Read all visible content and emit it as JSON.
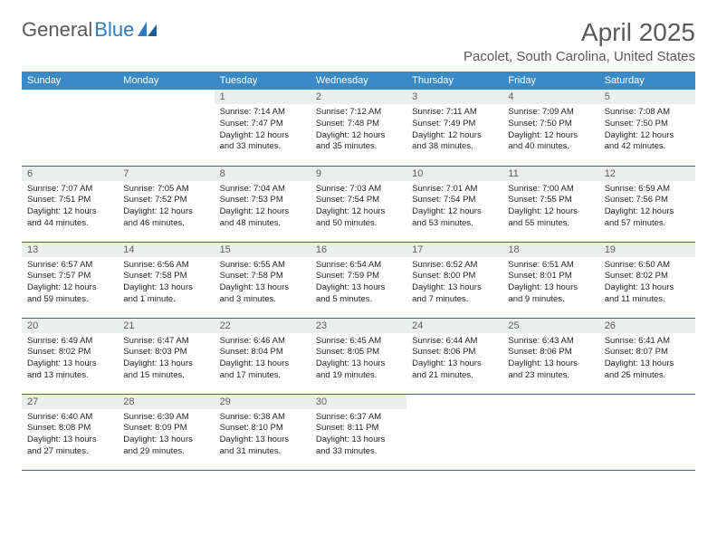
{
  "logo": {
    "text1": "General",
    "text2": "Blue"
  },
  "title": "April 2025",
  "location": "Pacolet, South Carolina, United States",
  "colors": {
    "header_bg": "#3a8ac7",
    "header_fg": "#ffffff",
    "daynum_bg": "#eceded",
    "daynum_fg": "#5f5f5f",
    "rule": "#3a6a9a",
    "title_fg": "#5a5a5a",
    "logo_blue": "#2f7bbf"
  },
  "weekdays": [
    "Sunday",
    "Monday",
    "Tuesday",
    "Wednesday",
    "Thursday",
    "Friday",
    "Saturday"
  ],
  "weeks": [
    [
      null,
      null,
      {
        "n": "1",
        "sr": "7:14 AM",
        "ss": "7:47 PM",
        "dl": "12 hours and 33 minutes."
      },
      {
        "n": "2",
        "sr": "7:12 AM",
        "ss": "7:48 PM",
        "dl": "12 hours and 35 minutes."
      },
      {
        "n": "3",
        "sr": "7:11 AM",
        "ss": "7:49 PM",
        "dl": "12 hours and 38 minutes."
      },
      {
        "n": "4",
        "sr": "7:09 AM",
        "ss": "7:50 PM",
        "dl": "12 hours and 40 minutes."
      },
      {
        "n": "5",
        "sr": "7:08 AM",
        "ss": "7:50 PM",
        "dl": "12 hours and 42 minutes."
      }
    ],
    [
      {
        "n": "6",
        "sr": "7:07 AM",
        "ss": "7:51 PM",
        "dl": "12 hours and 44 minutes."
      },
      {
        "n": "7",
        "sr": "7:05 AM",
        "ss": "7:52 PM",
        "dl": "12 hours and 46 minutes."
      },
      {
        "n": "8",
        "sr": "7:04 AM",
        "ss": "7:53 PM",
        "dl": "12 hours and 48 minutes."
      },
      {
        "n": "9",
        "sr": "7:03 AM",
        "ss": "7:54 PM",
        "dl": "12 hours and 50 minutes."
      },
      {
        "n": "10",
        "sr": "7:01 AM",
        "ss": "7:54 PM",
        "dl": "12 hours and 53 minutes."
      },
      {
        "n": "11",
        "sr": "7:00 AM",
        "ss": "7:55 PM",
        "dl": "12 hours and 55 minutes."
      },
      {
        "n": "12",
        "sr": "6:59 AM",
        "ss": "7:56 PM",
        "dl": "12 hours and 57 minutes."
      }
    ],
    [
      {
        "n": "13",
        "sr": "6:57 AM",
        "ss": "7:57 PM",
        "dl": "12 hours and 59 minutes."
      },
      {
        "n": "14",
        "sr": "6:56 AM",
        "ss": "7:58 PM",
        "dl": "13 hours and 1 minute."
      },
      {
        "n": "15",
        "sr": "6:55 AM",
        "ss": "7:58 PM",
        "dl": "13 hours and 3 minutes."
      },
      {
        "n": "16",
        "sr": "6:54 AM",
        "ss": "7:59 PM",
        "dl": "13 hours and 5 minutes."
      },
      {
        "n": "17",
        "sr": "6:52 AM",
        "ss": "8:00 PM",
        "dl": "13 hours and 7 minutes."
      },
      {
        "n": "18",
        "sr": "6:51 AM",
        "ss": "8:01 PM",
        "dl": "13 hours and 9 minutes."
      },
      {
        "n": "19",
        "sr": "6:50 AM",
        "ss": "8:02 PM",
        "dl": "13 hours and 11 minutes."
      }
    ],
    [
      {
        "n": "20",
        "sr": "6:49 AM",
        "ss": "8:02 PM",
        "dl": "13 hours and 13 minutes."
      },
      {
        "n": "21",
        "sr": "6:47 AM",
        "ss": "8:03 PM",
        "dl": "13 hours and 15 minutes."
      },
      {
        "n": "22",
        "sr": "6:46 AM",
        "ss": "8:04 PM",
        "dl": "13 hours and 17 minutes."
      },
      {
        "n": "23",
        "sr": "6:45 AM",
        "ss": "8:05 PM",
        "dl": "13 hours and 19 minutes."
      },
      {
        "n": "24",
        "sr": "6:44 AM",
        "ss": "8:06 PM",
        "dl": "13 hours and 21 minutes."
      },
      {
        "n": "25",
        "sr": "6:43 AM",
        "ss": "8:06 PM",
        "dl": "13 hours and 23 minutes."
      },
      {
        "n": "26",
        "sr": "6:41 AM",
        "ss": "8:07 PM",
        "dl": "13 hours and 25 minutes."
      }
    ],
    [
      {
        "n": "27",
        "sr": "6:40 AM",
        "ss": "8:08 PM",
        "dl": "13 hours and 27 minutes."
      },
      {
        "n": "28",
        "sr": "6:39 AM",
        "ss": "8:09 PM",
        "dl": "13 hours and 29 minutes."
      },
      {
        "n": "29",
        "sr": "6:38 AM",
        "ss": "8:10 PM",
        "dl": "13 hours and 31 minutes."
      },
      {
        "n": "30",
        "sr": "6:37 AM",
        "ss": "8:11 PM",
        "dl": "13 hours and 33 minutes."
      },
      null,
      null,
      null
    ]
  ],
  "labels": {
    "sunrise": "Sunrise:",
    "sunset": "Sunset:",
    "daylight": "Daylight:"
  }
}
